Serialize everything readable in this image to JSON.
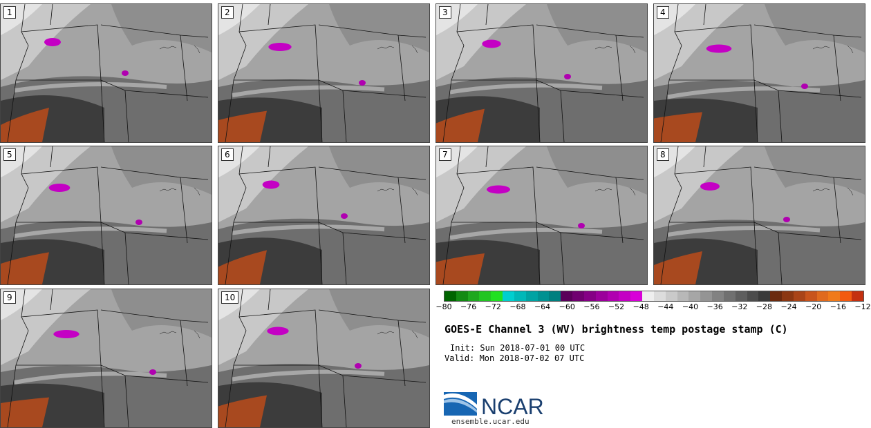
{
  "panels": [
    {
      "label": "1"
    },
    {
      "label": "2"
    },
    {
      "label": "3"
    },
    {
      "label": "4"
    },
    {
      "label": "5"
    },
    {
      "label": "6"
    },
    {
      "label": "7"
    },
    {
      "label": "8"
    },
    {
      "label": "9"
    },
    {
      "label": "10"
    }
  ],
  "colorbar": {
    "colors": [
      "#006400",
      "#138a13",
      "#1fa81f",
      "#22c522",
      "#21e021",
      "#00cfcf",
      "#00b8b8",
      "#00a3a3",
      "#009191",
      "#007f7f",
      "#5a005a",
      "#700070",
      "#850085",
      "#9b009b",
      "#b000b0",
      "#c400c4",
      "#d800d8",
      "#eeeeee",
      "#dcdcdc",
      "#cacaca",
      "#b8b8b8",
      "#a6a6a6",
      "#949494",
      "#828282",
      "#707070",
      "#5e5e5e",
      "#4c4c4c",
      "#3a3a3a",
      "#6b2a0e",
      "#8b3712",
      "#a94418",
      "#c8541c",
      "#e06a1e",
      "#f07a1a",
      "#f35a10",
      "#c43010"
    ],
    "ticks": [
      "−80",
      "−76",
      "−72",
      "−68",
      "−64",
      "−60",
      "−56",
      "−52",
      "−48",
      "−44",
      "−40",
      "−36",
      "−32",
      "−28",
      "−24",
      "−20",
      "−16",
      "−12"
    ]
  },
  "title": "GOES-E Channel 3 (WV) brightness temp postage stamp (C)",
  "init": "Init: Sun 2018-07-01 00 UTC",
  "valid": "Valid: Mon 2018-07-02 07 UTC",
  "logo_text": "NCAR",
  "site": "ensemble.ucar.edu"
}
